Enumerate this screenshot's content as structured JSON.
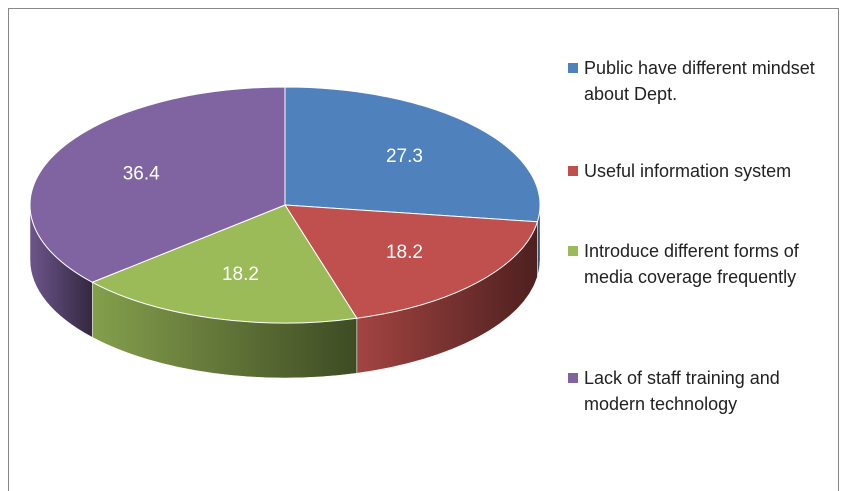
{
  "chart_data": {
    "type": "pie",
    "categories": [
      "Public have different mindset about Dept.",
      "Useful information system",
      "Introduce different forms of media coverage frequently",
      "Lack of staff training and modern technology"
    ],
    "values": [
      27.3,
      18.2,
      18.2,
      36.4
    ],
    "colors": [
      "#4f81bd",
      "#c0504d",
      "#9bbb59",
      "#8064a2"
    ],
    "legend": "right"
  }
}
